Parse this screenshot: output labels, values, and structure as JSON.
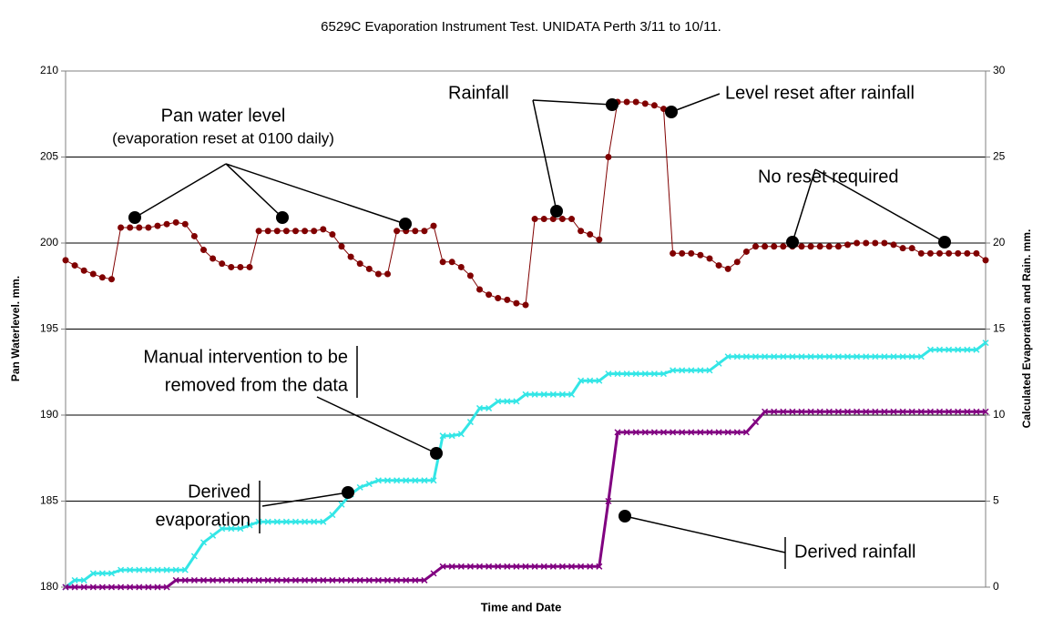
{
  "chart_data": {
    "type": "line",
    "title": "6529C Evaporation Instrument Test. UNIDATA Perth 3/11 to 10/11.",
    "xlabel": "Time and Date",
    "ylabel": "Pan Waterlevel. mm.",
    "y2label": "Calculated Evaporation and Rain. mm.",
    "ylim": [
      180,
      210
    ],
    "yticks": [
      180,
      185,
      190,
      195,
      200,
      205,
      210
    ],
    "y2lim": [
      0,
      30
    ],
    "y2ticks": [
      0,
      5,
      10,
      15,
      20,
      25,
      30
    ],
    "grid": true,
    "annotations": [
      "Pan water level",
      "(evaporation reset at 0100 daily)",
      "Rainfall",
      "Level reset after rainfall",
      "No reset required",
      "Manual intervention to be",
      "removed from the data",
      "Derived",
      "evaporation",
      "Derived rainfall"
    ],
    "categories": [
      null,
      null,
      null,
      null,
      null,
      null,
      null,
      null,
      null,
      null,
      null,
      null,
      null,
      null,
      null,
      null,
      null,
      null,
      null,
      null,
      null,
      null,
      null,
      null,
      null,
      null,
      null,
      null,
      null,
      null,
      null,
      null,
      null,
      null,
      null,
      null,
      null,
      null,
      null,
      null,
      null,
      null,
      null,
      null,
      null,
      null,
      null,
      null,
      null,
      null,
      null,
      null,
      null,
      null,
      null,
      null,
      null,
      null,
      null,
      null,
      null,
      null,
      null,
      null,
      null,
      null,
      null,
      null,
      null,
      null,
      null,
      null,
      null,
      null,
      null,
      null,
      null,
      null,
      null,
      null,
      null,
      null,
      null,
      null,
      null,
      null,
      null,
      null,
      null,
      null,
      null,
      null,
      null,
      null,
      null,
      null,
      null,
      null,
      null,
      null,
      null
    ],
    "series": [
      {
        "color": "#800000",
        "marker": "circle",
        "values": [
          199.0,
          198.7,
          198.4,
          198.2,
          198.0,
          197.9,
          200.9,
          200.9,
          200.9,
          200.9,
          201.0,
          201.1,
          201.2,
          201.1,
          200.4,
          199.6,
          199.1,
          198.8,
          198.6,
          198.6,
          198.6,
          200.7,
          200.7,
          200.7,
          200.7,
          200.7,
          200.7,
          200.7,
          200.8,
          200.5,
          199.8,
          199.2,
          198.8,
          198.5,
          198.2,
          198.2,
          200.7,
          200.7,
          200.7,
          200.7,
          201.0,
          198.9,
          198.9,
          198.6,
          198.1,
          197.3,
          197.0,
          196.8,
          196.7,
          196.5,
          196.4,
          201.4,
          201.4,
          201.4,
          201.4,
          201.4,
          200.7,
          200.5,
          200.2,
          205.0,
          208.2,
          208.2,
          208.2,
          208.1,
          208.0,
          207.8,
          199.4,
          199.4,
          199.4,
          199.3,
          199.1,
          198.7,
          198.5,
          198.9,
          199.5,
          199.8,
          199.8,
          199.8,
          199.8,
          199.8,
          199.8,
          199.8,
          199.8,
          199.8,
          199.8,
          199.9,
          200.0,
          200.0,
          200.0,
          200.0,
          199.9,
          199.7,
          199.7,
          199.4,
          199.4,
          199.4,
          199.4,
          199.4,
          199.4,
          199.4,
          199.0
        ]
      },
      {
        "color": "#33e6e6",
        "marker": "x",
        "axis": "y2",
        "values": [
          0,
          0.4,
          0.4,
          0.8,
          0.8,
          0.8,
          1.0,
          1.0,
          1.0,
          1.0,
          1.0,
          1.0,
          1.0,
          1.0,
          1.8,
          2.6,
          3.0,
          3.4,
          3.4,
          3.4,
          3.6,
          3.8,
          3.8,
          3.8,
          3.8,
          3.8,
          3.8,
          3.8,
          3.8,
          4.2,
          4.8,
          5.4,
          5.8,
          6.0,
          6.2,
          6.2,
          6.2,
          6.2,
          6.2,
          6.2,
          6.2,
          8.8,
          8.8,
          8.9,
          9.6,
          10.4,
          10.4,
          10.8,
          10.8,
          10.8,
          11.2,
          11.2,
          11.2,
          11.2,
          11.2,
          11.2,
          12.0,
          12.0,
          12.0,
          12.4,
          12.4,
          12.4,
          12.4,
          12.4,
          12.4,
          12.4,
          12.6,
          12.6,
          12.6,
          12.6,
          12.6,
          13.0,
          13.4,
          13.4,
          13.4,
          13.4,
          13.4,
          13.4,
          13.4,
          13.4,
          13.4,
          13.4,
          13.4,
          13.4,
          13.4,
          13.4,
          13.4,
          13.4,
          13.4,
          13.4,
          13.4,
          13.4,
          13.4,
          13.4,
          13.8,
          13.8,
          13.8,
          13.8,
          13.8,
          13.8,
          14.2
        ]
      },
      {
        "color": "#800080",
        "marker": "x",
        "axis": "y2",
        "values": [
          0,
          0,
          0,
          0,
          0,
          0,
          0,
          0,
          0,
          0,
          0,
          0,
          0.4,
          0.4,
          0.4,
          0.4,
          0.4,
          0.4,
          0.4,
          0.4,
          0.4,
          0.4,
          0.4,
          0.4,
          0.4,
          0.4,
          0.4,
          0.4,
          0.4,
          0.4,
          0.4,
          0.4,
          0.4,
          0.4,
          0.4,
          0.4,
          0.4,
          0.4,
          0.4,
          0.4,
          0.8,
          1.2,
          1.2,
          1.2,
          1.2,
          1.2,
          1.2,
          1.2,
          1.2,
          1.2,
          1.2,
          1.2,
          1.2,
          1.2,
          1.2,
          1.2,
          1.2,
          1.2,
          1.2,
          5.0,
          9.0,
          9.0,
          9.0,
          9.0,
          9.0,
          9.0,
          9.0,
          9.0,
          9.0,
          9.0,
          9.0,
          9.0,
          9.0,
          9.0,
          9.0,
          9.6,
          10.2,
          10.2,
          10.2,
          10.2,
          10.2,
          10.2,
          10.2,
          10.2,
          10.2,
          10.2,
          10.2,
          10.2,
          10.2,
          10.2,
          10.2,
          10.2,
          10.2,
          10.2,
          10.2,
          10.2,
          10.2,
          10.2,
          10.2,
          10.2,
          10.2
        ]
      }
    ]
  }
}
